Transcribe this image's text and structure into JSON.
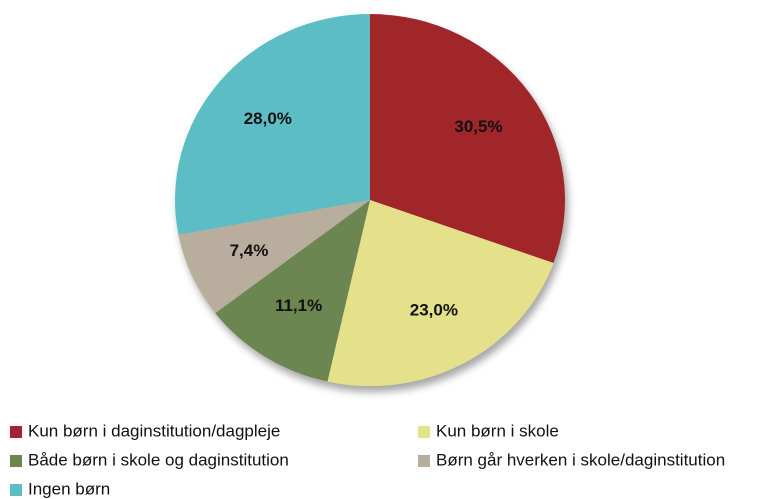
{
  "chart_data": {
    "type": "pie",
    "categories": [
      "Kun børn i daginstitution/dagpleje",
      "Kun børn i skole",
      "Både børn i skole og daginstitution",
      "Børn går hverken i skole/daginstitution",
      "Ingen børn"
    ],
    "values": [
      30.5,
      23.0,
      11.1,
      7.4,
      28.0
    ],
    "value_labels": [
      "30,5%",
      "23,0%",
      "11,1%",
      "7,4%",
      "28,0%"
    ],
    "colors": [
      "#a0262a",
      "#e4e18a",
      "#6c8651",
      "#b9ae9d",
      "#5cbdc5"
    ],
    "legend": "bottom"
  }
}
